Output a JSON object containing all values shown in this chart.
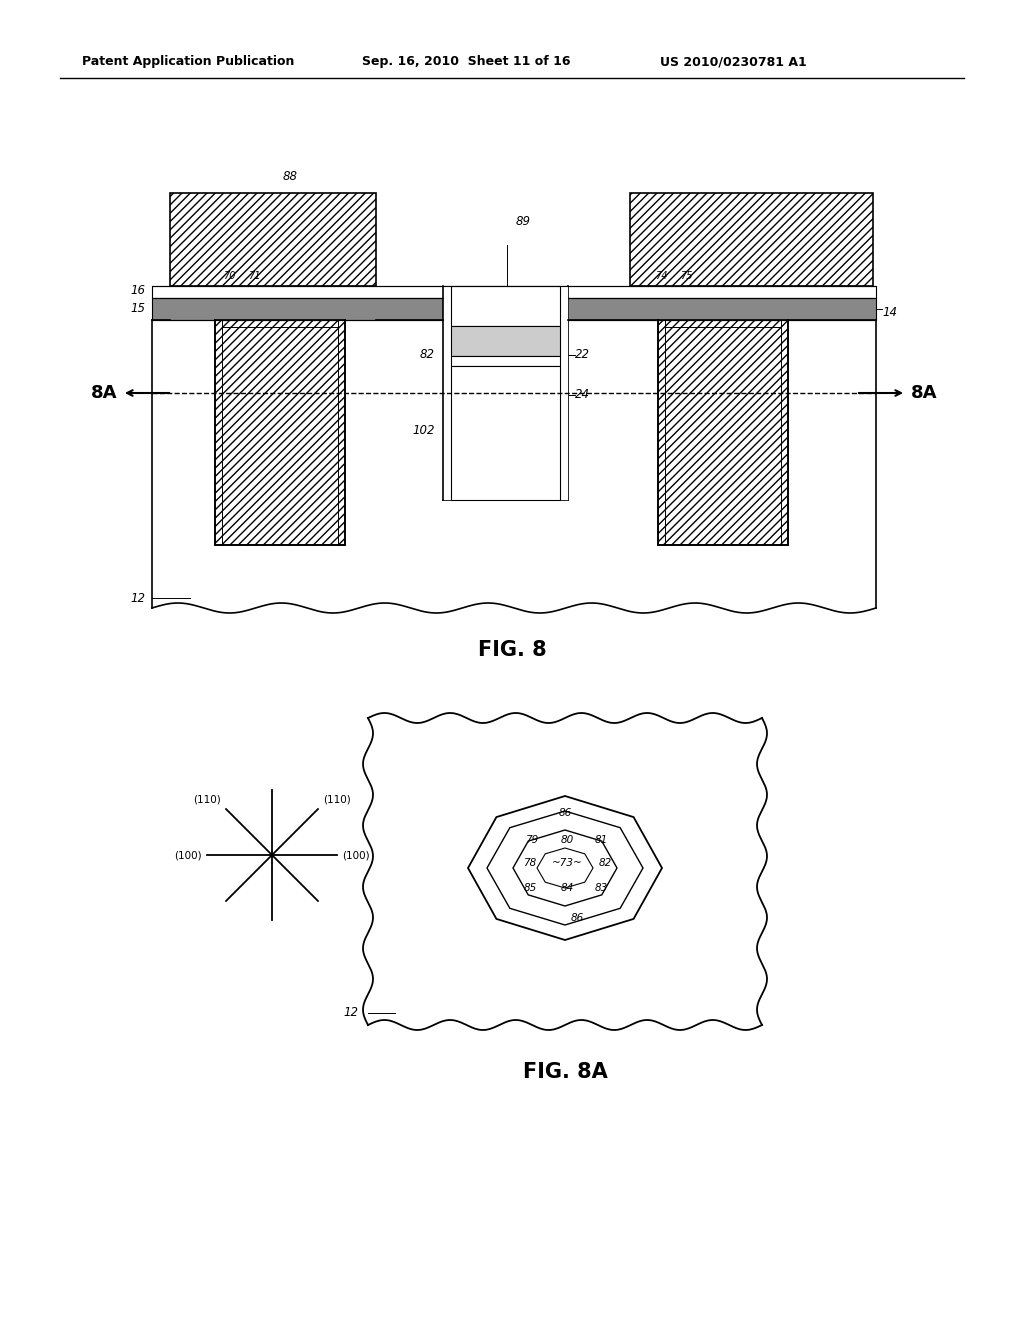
{
  "header_left": "Patent Application Publication",
  "header_mid": "Sep. 16, 2010  Sheet 11 of 16",
  "header_right": "US 2010/0230781 A1",
  "fig8_label": "FIG. 8",
  "fig8a_label": "FIG. 8A",
  "bg_color": "#ffffff"
}
